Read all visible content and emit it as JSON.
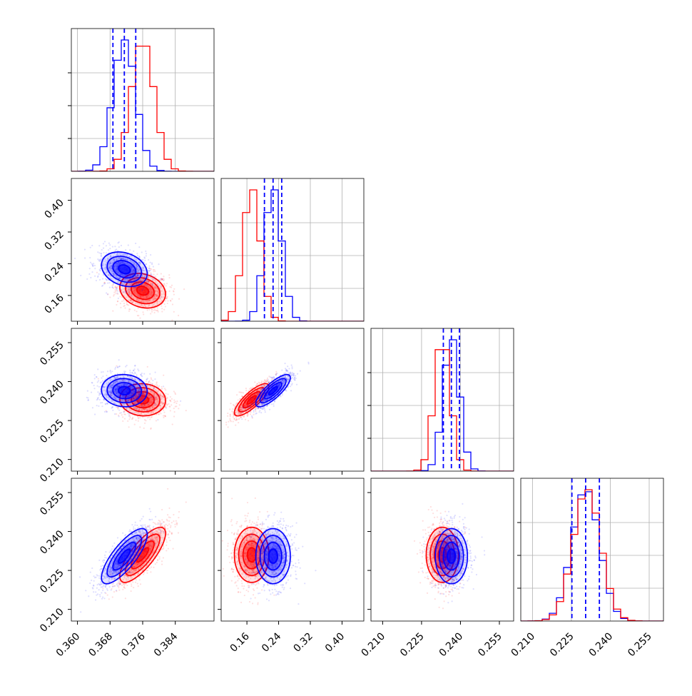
{
  "chart_data": {
    "type": "corner",
    "grid": true,
    "n_parameters": 4,
    "series": [
      {
        "color": "#0000ff",
        "means": [
          0.3715,
          0.226,
          0.2365,
          0.2305
        ],
        "sds": [
          0.0028,
          0.0218,
          0.0031,
          0.0053
        ],
        "correlations": {
          "1-0": -0.25,
          "2-0": -0.05,
          "2-1": 0.8,
          "3-0": 0.78,
          "3-1": 0.0,
          "3-2": 0.0
        },
        "quantile_lines": true
      },
      {
        "color": "#ff0000",
        "means": [
          0.376,
          0.172,
          0.233,
          0.231
        ],
        "sds": [
          0.0028,
          0.0218,
          0.0031,
          0.0053
        ],
        "correlations": {
          "1-0": -0.2,
          "2-0": -0.05,
          "2-1": 0.8,
          "3-0": 0.78,
          "3-1": 0.0,
          "3-2": 0.0
        },
        "quantile_lines": false
      }
    ],
    "quantile_series_color": "#0000ff",
    "axes": [
      {
        "range": [
          0.3585,
          0.3935
        ],
        "ticks": [
          0.36,
          0.368,
          0.376,
          0.384
        ],
        "tick_labels": [
          "0.360",
          "0.368",
          "0.376",
          "0.384"
        ]
      },
      {
        "range": [
          0.095,
          0.455
        ],
        "ticks": [
          0.16,
          0.24,
          0.32,
          0.4
        ],
        "tick_labels": [
          "0.16",
          "0.24",
          "0.32",
          "0.40"
        ]
      },
      {
        "range": [
          0.2055,
          0.2605
        ],
        "ticks": [
          0.21,
          0.225,
          0.24,
          0.255
        ],
        "tick_labels": [
          "0.210",
          "0.225",
          "0.240",
          "0.255"
        ]
      },
      {
        "range": [
          0.2055,
          0.2605
        ],
        "ticks": [
          0.21,
          0.225,
          0.24,
          0.255
        ],
        "tick_labels": [
          "0.210",
          "0.225",
          "0.240",
          "0.255"
        ]
      }
    ]
  }
}
